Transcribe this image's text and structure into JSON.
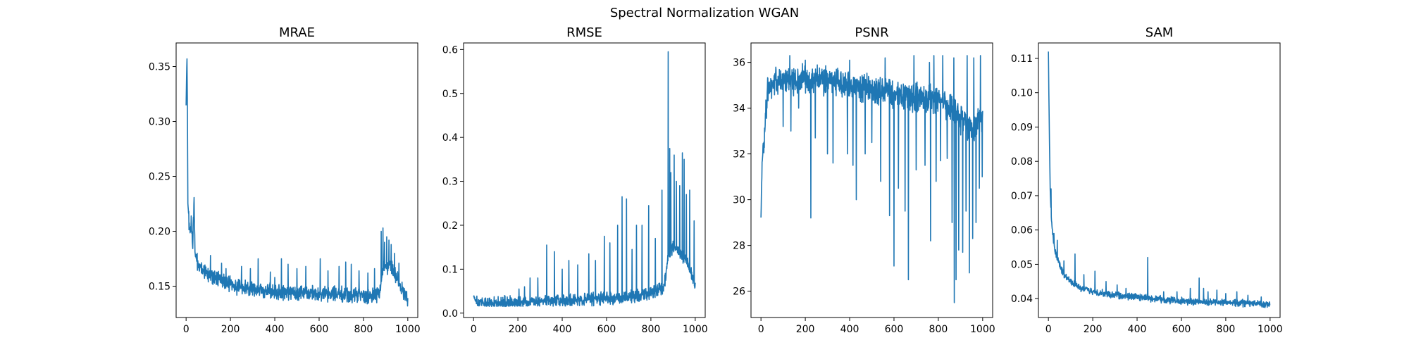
{
  "figure": {
    "title": "Spectral Normalization WGAN"
  },
  "chart_data": [
    {
      "type": "line",
      "title": "MRAE",
      "xlim": [
        -45,
        1045
      ],
      "ylim": [
        0.1215,
        0.3715
      ],
      "xticks": [
        0,
        200,
        400,
        600,
        800,
        1000
      ],
      "yticks": [
        0.15,
        0.2,
        0.25,
        0.3,
        0.35
      ],
      "ytick_decimals": 2,
      "series": [
        {
          "color": "#1f77b4",
          "knots": [
            [
              0,
              0.315
            ],
            [
              2,
              0.34
            ],
            [
              4,
              0.358
            ],
            [
              6,
              0.31
            ],
            [
              8,
              0.225
            ],
            [
              10,
              0.22
            ],
            [
              14,
              0.205
            ],
            [
              18,
              0.195
            ],
            [
              24,
              0.21
            ],
            [
              30,
              0.185
            ],
            [
              36,
              0.227
            ],
            [
              40,
              0.182
            ],
            [
              50,
              0.172
            ],
            [
              70,
              0.166
            ],
            [
              100,
              0.161
            ],
            [
              150,
              0.156
            ],
            [
              200,
              0.151
            ],
            [
              300,
              0.147
            ],
            [
              400,
              0.145
            ],
            [
              500,
              0.144
            ],
            [
              600,
              0.143
            ],
            [
              700,
              0.142
            ],
            [
              800,
              0.141
            ],
            [
              870,
              0.142
            ],
            [
              880,
              0.158
            ],
            [
              890,
              0.172
            ],
            [
              900,
              0.168
            ],
            [
              920,
              0.17
            ],
            [
              950,
              0.158
            ],
            [
              970,
              0.15
            ],
            [
              985,
              0.142
            ],
            [
              1000,
              0.138
            ]
          ],
          "noise_amp": 0.0085,
          "noise_floor": 0.1295,
          "spikes": [
            [
              50,
              0.18
            ],
            [
              110,
              0.178
            ],
            [
              160,
              0.171
            ],
            [
              180,
              0.166
            ],
            [
              250,
              0.168
            ],
            [
              290,
              0.166
            ],
            [
              325,
              0.175
            ],
            [
              380,
              0.163
            ],
            [
              400,
              0.158
            ],
            [
              430,
              0.175
            ],
            [
              460,
              0.17
            ],
            [
              500,
              0.166
            ],
            [
              540,
              0.168
            ],
            [
              605,
              0.175
            ],
            [
              640,
              0.164
            ],
            [
              690,
              0.168
            ],
            [
              720,
              0.172
            ],
            [
              745,
              0.17
            ],
            [
              780,
              0.164
            ],
            [
              820,
              0.162
            ],
            [
              850,
              0.166
            ],
            [
              880,
              0.2
            ],
            [
              888,
              0.203
            ],
            [
              895,
              0.19
            ],
            [
              905,
              0.195
            ],
            [
              915,
              0.192
            ],
            [
              925,
              0.188
            ],
            [
              940,
              0.18
            ],
            [
              960,
              0.171
            ],
            [
              990,
              0.145
            ]
          ],
          "dips": []
        }
      ]
    },
    {
      "type": "line",
      "title": "RMSE",
      "xlim": [
        -45,
        1045
      ],
      "ylim": [
        -0.01,
        0.615
      ],
      "xticks": [
        0,
        200,
        400,
        600,
        800,
        1000
      ],
      "yticks": [
        0.0,
        0.1,
        0.2,
        0.3,
        0.4,
        0.5,
        0.6
      ],
      "ytick_decimals": 1,
      "series": [
        {
          "color": "#1f77b4",
          "knots": [
            [
              0,
              0.038
            ],
            [
              4,
              0.034
            ],
            [
              10,
              0.028
            ],
            [
              30,
              0.024
            ],
            [
              100,
              0.022
            ],
            [
              200,
              0.024
            ],
            [
              300,
              0.027
            ],
            [
              400,
              0.029
            ],
            [
              500,
              0.031
            ],
            [
              600,
              0.033
            ],
            [
              700,
              0.037
            ],
            [
              800,
              0.045
            ],
            [
              860,
              0.06
            ],
            [
              880,
              0.13
            ],
            [
              900,
              0.15
            ],
            [
              930,
              0.14
            ],
            [
              960,
              0.12
            ],
            [
              990,
              0.08
            ],
            [
              1000,
              0.06
            ]
          ],
          "noise_amp": 0.018,
          "noise_floor": 0.015,
          "spikes": [
            [
              170,
              0.03
            ],
            [
              205,
              0.055
            ],
            [
              230,
              0.06
            ],
            [
              255,
              0.08
            ],
            [
              290,
              0.08
            ],
            [
              330,
              0.155
            ],
            [
              365,
              0.14
            ],
            [
              400,
              0.1
            ],
            [
              430,
              0.12
            ],
            [
              470,
              0.11
            ],
            [
              520,
              0.135
            ],
            [
              550,
              0.12
            ],
            [
              590,
              0.175
            ],
            [
              615,
              0.16
            ],
            [
              650,
              0.2
            ],
            [
              670,
              0.265
            ],
            [
              690,
              0.26
            ],
            [
              715,
              0.145
            ],
            [
              735,
              0.2
            ],
            [
              760,
              0.2
            ],
            [
              790,
              0.245
            ],
            [
              820,
              0.17
            ],
            [
              850,
              0.28
            ],
            [
              878,
              0.595
            ],
            [
              885,
              0.375
            ],
            [
              890,
              0.32
            ],
            [
              905,
              0.36
            ],
            [
              915,
              0.3
            ],
            [
              930,
              0.29
            ],
            [
              942,
              0.365
            ],
            [
              950,
              0.35
            ],
            [
              960,
              0.27
            ],
            [
              975,
              0.28
            ],
            [
              995,
              0.21
            ]
          ],
          "dips": []
        }
      ]
    },
    {
      "type": "line",
      "title": "PSNR",
      "xlim": [
        -45,
        1045
      ],
      "ylim": [
        24.85,
        36.85
      ],
      "xticks": [
        0,
        200,
        400,
        600,
        800,
        1000
      ],
      "yticks": [
        26,
        28,
        30,
        32,
        34,
        36
      ],
      "ytick_decimals": 0,
      "series": [
        {
          "color": "#1f77b4",
          "knots": [
            [
              0,
              29.3
            ],
            [
              5,
              31.5
            ],
            [
              10,
              32.4
            ],
            [
              15,
              32.8
            ],
            [
              20,
              33.6
            ],
            [
              30,
              34.8
            ],
            [
              50,
              35.1
            ],
            [
              100,
              35.2
            ],
            [
              200,
              35.3
            ],
            [
              300,
              35.2
            ],
            [
              400,
              35.0
            ],
            [
              500,
              34.8
            ],
            [
              600,
              34.6
            ],
            [
              700,
              34.5
            ],
            [
              800,
              34.4
            ],
            [
              850,
              34.0
            ],
            [
              900,
              33.5
            ],
            [
              950,
              33.2
            ],
            [
              1000,
              33.5
            ]
          ],
          "noise_amp": 0.75,
          "noise_floor": 24.9,
          "spikes": [
            [
              130,
              36.3
            ],
            [
              200,
              36.1
            ],
            [
              300,
              36.0
            ],
            [
              400,
              36.1
            ],
            [
              500,
              36.0
            ],
            [
              560,
              36.2
            ],
            [
              620,
              36.1
            ],
            [
              690,
              36.3
            ],
            [
              760,
              36.0
            ],
            [
              780,
              36.3
            ],
            [
              820,
              36.3
            ],
            [
              870,
              36.2
            ],
            [
              930,
              36.3
            ],
            [
              960,
              36.2
            ],
            [
              990,
              36.3
            ]
          ],
          "dips": [
            [
              100,
              33.2
            ],
            [
              135,
              33.0
            ],
            [
              170,
              34.0
            ],
            [
              225,
              29.2
            ],
            [
              245,
              32.7
            ],
            [
              300,
              32.0
            ],
            [
              325,
              31.6
            ],
            [
              390,
              32.0
            ],
            [
              415,
              31.5
            ],
            [
              430,
              30.0
            ],
            [
              470,
              32.0
            ],
            [
              500,
              32.5
            ],
            [
              540,
              30.8
            ],
            [
              580,
              29.3
            ],
            [
              600,
              27.1
            ],
            [
              620,
              30.5
            ],
            [
              650,
              29.5
            ],
            [
              665,
              26.5
            ],
            [
              700,
              31.3
            ],
            [
              740,
              31.5
            ],
            [
              765,
              28.2
            ],
            [
              790,
              30.8
            ],
            [
              810,
              31.7
            ],
            [
              840,
              31.8
            ],
            [
              862,
              29.0
            ],
            [
              872,
              25.5
            ],
            [
              880,
              26.5
            ],
            [
              892,
              27.8
            ],
            [
              910,
              27.7
            ],
            [
              925,
              29.5
            ],
            [
              940,
              26.8
            ],
            [
              955,
              28.3
            ],
            [
              970,
              29.0
            ],
            [
              985,
              30.5
            ],
            [
              998,
              31.0
            ]
          ]
        }
      ]
    },
    {
      "type": "line",
      "title": "SAM",
      "xlim": [
        -45,
        1045
      ],
      "ylim": [
        0.0345,
        0.1145
      ],
      "xticks": [
        0,
        200,
        400,
        600,
        800,
        1000
      ],
      "yticks": [
        0.04,
        0.05,
        0.06,
        0.07,
        0.08,
        0.09,
        0.1,
        0.11
      ],
      "ytick_decimals": 2,
      "series": [
        {
          "color": "#1f77b4",
          "knots": [
            [
              0,
              0.112
            ],
            [
              2,
              0.1
            ],
            [
              5,
              0.085
            ],
            [
              8,
              0.072
            ],
            [
              10,
              0.068
            ],
            [
              12,
              0.065
            ],
            [
              20,
              0.058
            ],
            [
              30,
              0.054
            ],
            [
              50,
              0.05
            ],
            [
              70,
              0.047
            ],
            [
              100,
              0.045
            ],
            [
              150,
              0.043
            ],
            [
              200,
              0.042
            ],
            [
              300,
              0.041
            ],
            [
              400,
              0.0405
            ],
            [
              500,
              0.0398
            ],
            [
              600,
              0.0393
            ],
            [
              700,
              0.039
            ],
            [
              800,
              0.0388
            ],
            [
              900,
              0.0387
            ],
            [
              1000,
              0.0383
            ]
          ],
          "noise_amp": 0.0012,
          "noise_floor": 0.0373,
          "spikes": [
            [
              12,
              0.072
            ],
            [
              25,
              0.059
            ],
            [
              40,
              0.057
            ],
            [
              70,
              0.051
            ],
            [
              120,
              0.053
            ],
            [
              160,
              0.047
            ],
            [
              210,
              0.048
            ],
            [
              260,
              0.045
            ],
            [
              310,
              0.044
            ],
            [
              350,
              0.043
            ],
            [
              448,
              0.052
            ],
            [
              520,
              0.042
            ],
            [
              580,
              0.042
            ],
            [
              640,
              0.043
            ],
            [
              680,
              0.046
            ],
            [
              700,
              0.043
            ],
            [
              720,
              0.042
            ],
            [
              760,
              0.0425
            ],
            [
              800,
              0.0415
            ],
            [
              850,
              0.042
            ],
            [
              900,
              0.041
            ],
            [
              960,
              0.0405
            ]
          ],
          "dips": []
        }
      ]
    }
  ]
}
